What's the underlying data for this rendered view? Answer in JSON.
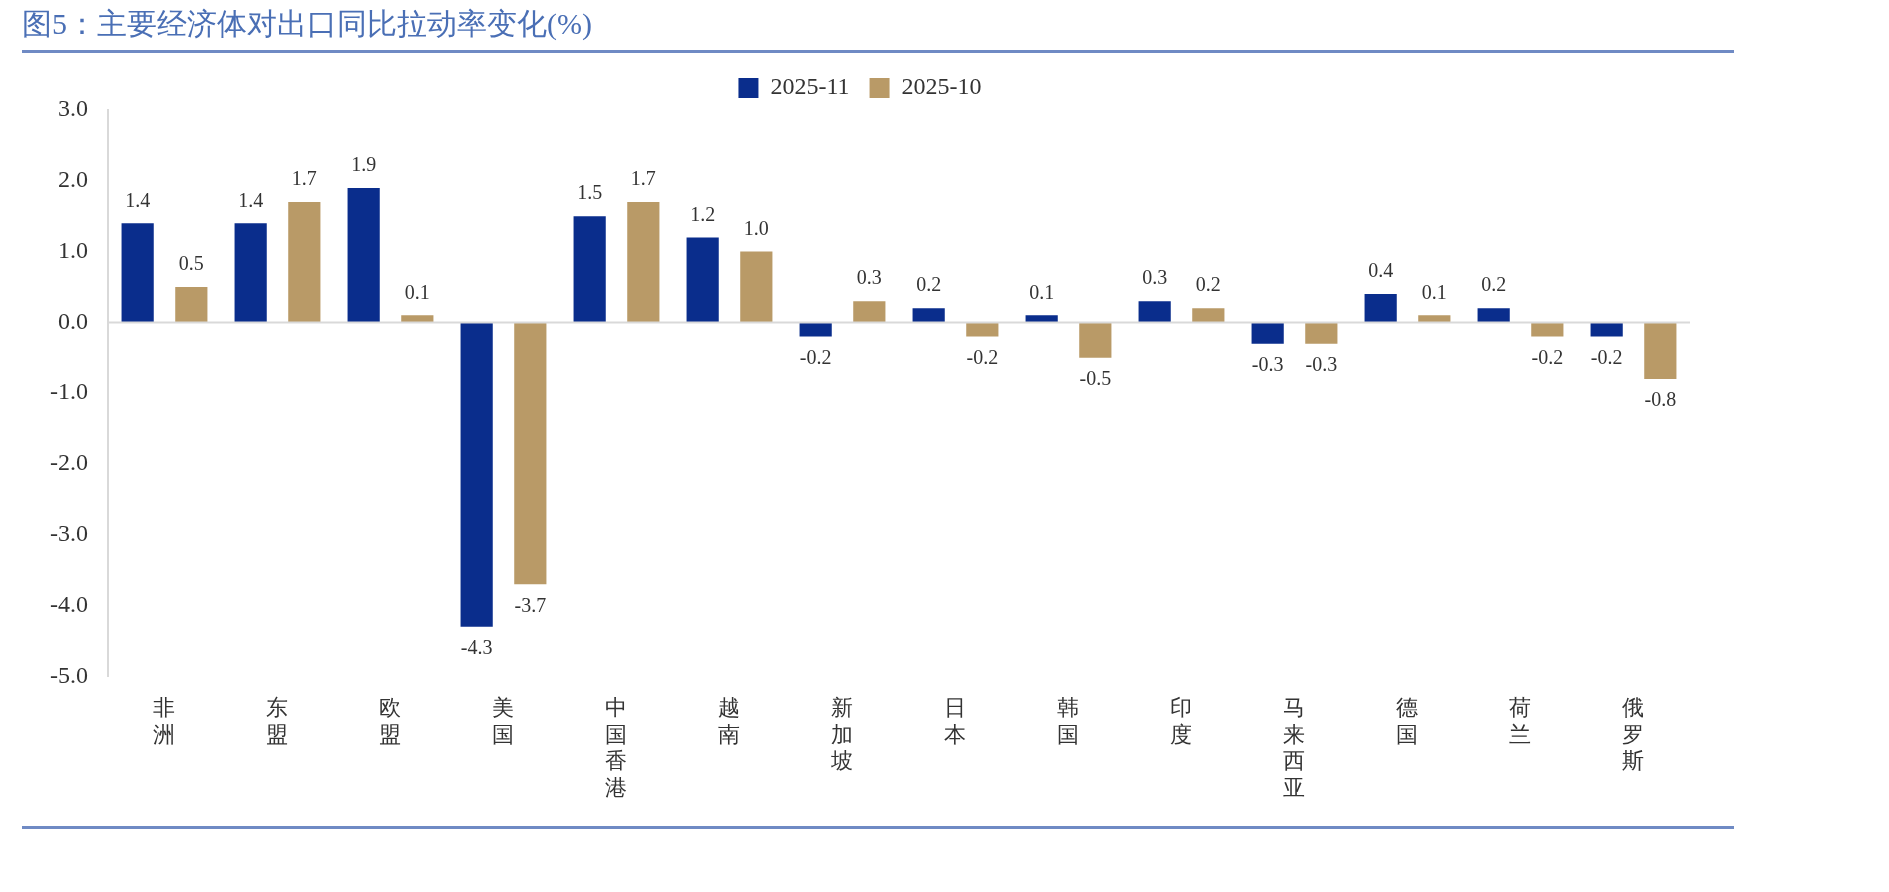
{
  "chart_data": {
    "type": "bar",
    "title": "图5：主要经济体对出口同比拉动率变化(%)",
    "categories": [
      "非洲",
      "东盟",
      "欧盟",
      "美国",
      "中国香港",
      "越南",
      "新加坡",
      "日本",
      "韩国",
      "印度",
      "马来西亚",
      "德国",
      "荷兰",
      "俄罗斯"
    ],
    "series": [
      {
        "name": "2025-11",
        "color": "#0a2d8c",
        "values": [
          1.4,
          1.4,
          1.9,
          -4.3,
          1.5,
          1.2,
          -0.2,
          0.2,
          0.1,
          0.3,
          -0.3,
          0.4,
          0.2,
          -0.2
        ],
        "value_labels": [
          "1.4",
          "1.4",
          "1.9",
          "-4.3",
          "1.5",
          "1.2",
          "-0.2",
          "0.2",
          "0.1",
          "0.3",
          "-0.3",
          "0.4",
          "0.2",
          "-0.2"
        ]
      },
      {
        "name": "2025-10",
        "color": "#b99a67",
        "values": [
          0.5,
          1.7,
          0.1,
          -3.7,
          1.7,
          1.0,
          0.3,
          -0.2,
          -0.5,
          0.2,
          -0.3,
          0.1,
          -0.2,
          -0.8
        ],
        "value_labels": [
          "0.5",
          "1.7",
          "0.1",
          "-3.7",
          "1.7",
          "1.0",
          "0.3",
          "-0.2",
          "-0.5",
          "0.2",
          "-0.3",
          "0.1",
          "-0.2",
          "-0.8"
        ]
      }
    ],
    "ylim": [
      -5,
      3
    ],
    "yticks": [
      {
        "value": 3,
        "label": "3.0"
      },
      {
        "value": 2,
        "label": "2.0"
      },
      {
        "value": 1,
        "label": "1.0"
      },
      {
        "value": 0,
        "label": "0.0"
      },
      {
        "value": -1,
        "label": "-1.0"
      },
      {
        "value": -2,
        "label": "-2.0"
      },
      {
        "value": -3,
        "label": "-3.0"
      },
      {
        "value": -4,
        "label": "-4.0"
      },
      {
        "value": -5,
        "label": "-5.0"
      }
    ],
    "legend": "top",
    "grid": false,
    "ref_lines": [
      {
        "axis": "y",
        "value": 0,
        "color": "#d9d9d9"
      }
    ]
  }
}
